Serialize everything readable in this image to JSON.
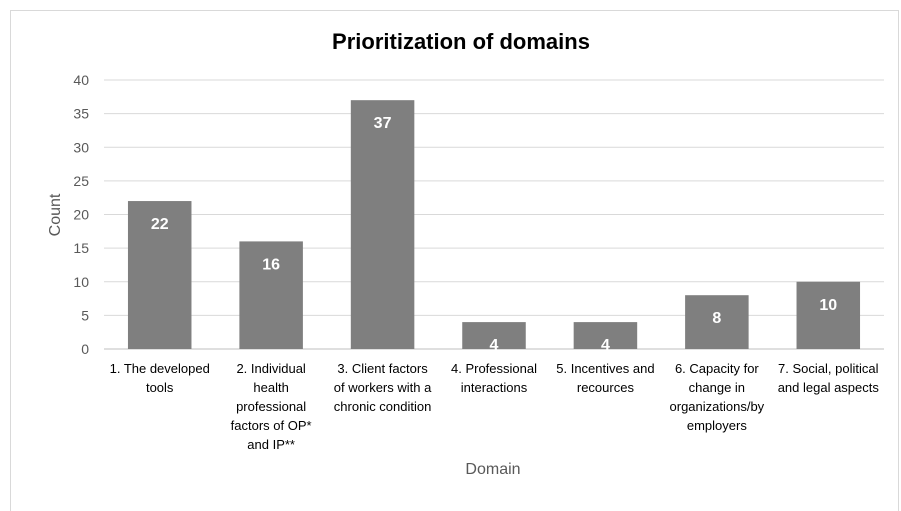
{
  "chart_data": {
    "type": "bar",
    "title": "Prioritization of domains",
    "xlabel": "Domain",
    "ylabel": "Count",
    "ylim": [
      0,
      40
    ],
    "yticks": [
      0,
      5,
      10,
      15,
      20,
      25,
      30,
      35,
      40
    ],
    "grid": true,
    "bar_color": "#7f7f7f",
    "categories": [
      "1. The developed tools",
      "2. Individual health professional factors of OP* and IP**",
      "3. Client factors of workers with a chronic condition",
      "4. Professional interactions",
      "5. Incentives and recources",
      "6. Capacity for change in organizations/by employers",
      "7. Social, political and legal aspects"
    ],
    "category_lines": [
      [
        "1. The developed",
        "tools"
      ],
      [
        "2. Individual",
        "health",
        "professional",
        "factors of OP*",
        "and IP**"
      ],
      [
        "3. Client factors",
        "of workers with a",
        "chronic condition"
      ],
      [
        "4. Professional",
        "interactions"
      ],
      [
        "5. Incentives and",
        "recources"
      ],
      [
        "6. Capacity for",
        "change in",
        "organizations/by",
        "employers"
      ],
      [
        "7. Social, political",
        "and legal aspects"
      ]
    ],
    "values": [
      22,
      16,
      37,
      4,
      4,
      8,
      10
    ],
    "data_labels": [
      "22",
      "16",
      "37",
      "4",
      "4",
      "8",
      "10"
    ]
  }
}
